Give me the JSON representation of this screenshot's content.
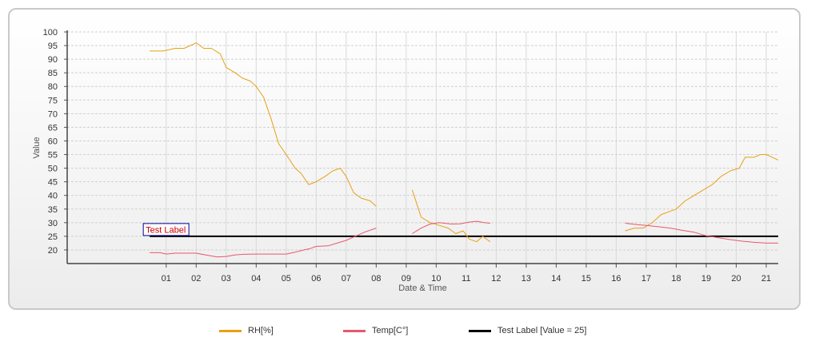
{
  "chart_data": {
    "type": "line",
    "xlabel": "Date & Time",
    "ylabel": "Value",
    "ylim": [
      15,
      100
    ],
    "yticks": [
      20,
      25,
      30,
      35,
      40,
      45,
      50,
      55,
      60,
      65,
      70,
      75,
      80,
      85,
      90,
      95,
      100
    ],
    "xlim": [
      -2.3,
      21.4
    ],
    "xticks": [
      "01",
      "02",
      "03",
      "04",
      "05",
      "06",
      "07",
      "08",
      "09",
      "10",
      "11",
      "12",
      "13",
      "14",
      "15",
      "16",
      "17",
      "18",
      "19",
      "20",
      "21"
    ],
    "grid": true,
    "legend_position": "bottom",
    "series": [
      {
        "name": "RH[%]",
        "color": "#e8a013",
        "segments": [
          [
            [
              0.45,
              93
            ],
            [
              0.9,
              93
            ],
            [
              1.3,
              94
            ],
            [
              1.6,
              94
            ],
            [
              1.9,
              95.5
            ],
            [
              2.0,
              96
            ],
            [
              2.25,
              94
            ],
            [
              2.5,
              94
            ],
            [
              2.8,
              92
            ],
            [
              3.0,
              87
            ],
            [
              3.3,
              85
            ],
            [
              3.55,
              83
            ],
            [
              3.8,
              82
            ],
            [
              4.0,
              80
            ],
            [
              4.25,
              76
            ],
            [
              4.5,
              68
            ],
            [
              4.75,
              59
            ],
            [
              5.0,
              55
            ],
            [
              5.3,
              50
            ],
            [
              5.5,
              48
            ],
            [
              5.75,
              44
            ],
            [
              6.0,
              45
            ],
            [
              6.3,
              47
            ],
            [
              6.55,
              49
            ],
            [
              6.8,
              50
            ],
            [
              7.0,
              47
            ],
            [
              7.25,
              41
            ],
            [
              7.5,
              39
            ],
            [
              7.8,
              38
            ],
            [
              8.0,
              36
            ]
          ],
          [
            [
              9.2,
              42
            ],
            [
              9.5,
              32
            ],
            [
              9.8,
              30
            ],
            [
              10.1,
              29
            ],
            [
              10.4,
              28
            ],
            [
              10.65,
              26
            ],
            [
              10.9,
              27
            ],
            [
              11.1,
              24
            ],
            [
              11.35,
              23
            ],
            [
              11.55,
              25
            ],
            [
              11.8,
              23
            ]
          ],
          [
            [
              16.3,
              27
            ],
            [
              16.6,
              28
            ],
            [
              16.9,
              28
            ],
            [
              17.2,
              30
            ],
            [
              17.5,
              33
            ],
            [
              17.75,
              34
            ],
            [
              18.0,
              35
            ],
            [
              18.3,
              38
            ],
            [
              18.6,
              40
            ],
            [
              18.9,
              42
            ],
            [
              19.2,
              44
            ],
            [
              19.5,
              47
            ],
            [
              19.8,
              49
            ],
            [
              20.1,
              50
            ],
            [
              20.3,
              54
            ],
            [
              20.6,
              54
            ],
            [
              20.8,
              55
            ],
            [
              21.0,
              55
            ],
            [
              21.2,
              54
            ],
            [
              21.4,
              53
            ]
          ]
        ]
      },
      {
        "name": "Temp[C°]",
        "color": "#e8586c",
        "segments": [
          [
            [
              0.45,
              19
            ],
            [
              0.8,
              19
            ],
            [
              1.0,
              18.5
            ],
            [
              1.3,
              18.8
            ],
            [
              1.6,
              18.8
            ],
            [
              2.0,
              18.8
            ],
            [
              2.4,
              18
            ],
            [
              2.7,
              17.4
            ],
            [
              3.0,
              17.6
            ],
            [
              3.3,
              18.2
            ],
            [
              3.6,
              18.4
            ],
            [
              4.0,
              18.5
            ],
            [
              4.4,
              18.5
            ],
            [
              5.0,
              18.5
            ],
            [
              5.3,
              19.2
            ],
            [
              5.6,
              20
            ],
            [
              5.8,
              20.5
            ],
            [
              6.0,
              21.3
            ],
            [
              6.4,
              21.5
            ],
            [
              6.7,
              22.5
            ],
            [
              7.0,
              23.5
            ],
            [
              7.3,
              25
            ],
            [
              7.6,
              26.5
            ],
            [
              8.0,
              28
            ]
          ],
          [
            [
              9.2,
              26
            ],
            [
              9.5,
              28
            ],
            [
              9.8,
              29.5
            ],
            [
              10.1,
              30
            ],
            [
              10.5,
              29.5
            ],
            [
              10.8,
              29.6
            ],
            [
              11.1,
              30.2
            ],
            [
              11.35,
              30.5
            ],
            [
              11.6,
              30
            ],
            [
              11.8,
              29.8
            ]
          ],
          [
            [
              16.3,
              29.8
            ],
            [
              16.7,
              29.3
            ],
            [
              17.0,
              29
            ],
            [
              17.4,
              28.5
            ],
            [
              17.8,
              28
            ],
            [
              18.2,
              27.2
            ],
            [
              18.6,
              26.5
            ],
            [
              19.0,
              25.2
            ],
            [
              19.4,
              24.5
            ],
            [
              19.8,
              23.8
            ],
            [
              20.2,
              23.2
            ],
            [
              20.6,
              22.8
            ],
            [
              21.0,
              22.5
            ],
            [
              21.4,
              22.5
            ]
          ]
        ]
      },
      {
        "name": "Test Label [Value = 25]",
        "color": "#000000",
        "segments": [
          [
            [
              0.45,
              25
            ],
            [
              21.4,
              25
            ]
          ]
        ]
      }
    ],
    "annotations": [
      {
        "text": "Test Label",
        "x": 0.45,
        "y": 25,
        "color": "#cc0000",
        "border_color": "#000099"
      }
    ]
  }
}
